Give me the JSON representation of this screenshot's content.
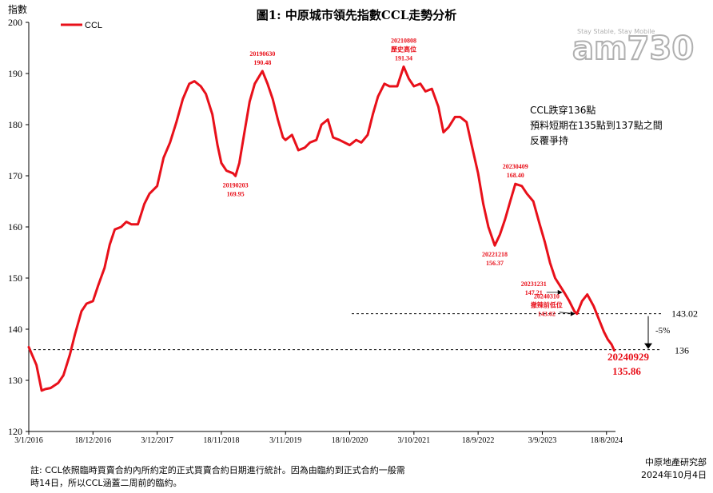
{
  "chart_data": {
    "type": "line",
    "title": "圖1: 中原城市領先指數CCL走勢分析",
    "ylabel": "指數",
    "ylim": [
      120,
      200
    ],
    "yticks": [
      120,
      130,
      140,
      150,
      160,
      170,
      180,
      190,
      200
    ],
    "xticks": [
      "3/1/2016",
      "18/12/2016",
      "3/12/2017",
      "18/11/2018",
      "3/11/2019",
      "18/10/2020",
      "3/10/2021",
      "18/9/2022",
      "3/9/2023",
      "18/8/2024"
    ],
    "xlim": [
      "2016-01-03",
      "2024-10-06"
    ],
    "legend": {
      "position": "top-left",
      "label": "CCL"
    },
    "series": [
      {
        "name": "CCL",
        "color": "#e8101a",
        "points": [
          [
            "2016-01-03",
            136.5
          ],
          [
            "2016-02-14",
            133.0
          ],
          [
            "2016-03-13",
            128.0
          ],
          [
            "2016-04-03",
            128.3
          ],
          [
            "2016-05-01",
            128.5
          ],
          [
            "2016-06-12",
            129.5
          ],
          [
            "2016-07-10",
            131.0
          ],
          [
            "2016-08-14",
            135.0
          ],
          [
            "2016-09-11",
            139.0
          ],
          [
            "2016-10-16",
            143.5
          ],
          [
            "2016-11-13",
            145.0
          ],
          [
            "2016-12-18",
            145.5
          ],
          [
            "2017-01-15",
            148.5
          ],
          [
            "2017-02-19",
            152.0
          ],
          [
            "2017-03-19",
            156.5
          ],
          [
            "2017-04-16",
            159.5
          ],
          [
            "2017-05-21",
            160.0
          ],
          [
            "2017-06-18",
            161.0
          ],
          [
            "2017-07-16",
            160.5
          ],
          [
            "2017-08-20",
            160.5
          ],
          [
            "2017-09-24",
            164.5
          ],
          [
            "2017-10-22",
            166.5
          ],
          [
            "2017-12-03",
            168.0
          ],
          [
            "2018-01-07",
            173.5
          ],
          [
            "2018-02-11",
            176.5
          ],
          [
            "2018-03-18",
            180.5
          ],
          [
            "2018-04-22",
            185.0
          ],
          [
            "2018-05-27",
            188.0
          ],
          [
            "2018-06-24",
            188.5
          ],
          [
            "2018-07-29",
            187.5
          ],
          [
            "2018-08-26",
            186.0
          ],
          [
            "2018-09-30",
            182.0
          ],
          [
            "2018-10-28",
            176.0
          ],
          [
            "2018-11-18",
            172.5
          ],
          [
            "2018-12-16",
            171.0
          ],
          [
            "2019-01-20",
            170.5
          ],
          [
            "2019-02-03",
            169.95
          ],
          [
            "2019-02-24",
            172.5
          ],
          [
            "2019-03-24",
            178.5
          ],
          [
            "2019-04-21",
            184.5
          ],
          [
            "2019-05-19",
            188.0
          ],
          [
            "2019-06-30",
            190.48
          ],
          [
            "2019-07-28",
            188.0
          ],
          [
            "2019-08-25",
            185.0
          ],
          [
            "2019-09-22",
            181.0
          ],
          [
            "2019-10-20",
            177.5
          ],
          [
            "2019-11-03",
            177.0
          ],
          [
            "2019-12-08",
            178.0
          ],
          [
            "2020-01-12",
            175.0
          ],
          [
            "2020-02-16",
            175.5
          ],
          [
            "2020-03-15",
            176.5
          ],
          [
            "2020-04-19",
            177.0
          ],
          [
            "2020-05-17",
            180.0
          ],
          [
            "2020-06-21",
            181.0
          ],
          [
            "2020-07-19",
            177.5
          ],
          [
            "2020-08-23",
            177.0
          ],
          [
            "2020-09-20",
            176.5
          ],
          [
            "2020-10-18",
            176.0
          ],
          [
            "2020-11-22",
            177.0
          ],
          [
            "2020-12-20",
            176.5
          ],
          [
            "2021-01-24",
            178.0
          ],
          [
            "2021-02-21",
            182.0
          ],
          [
            "2021-03-21",
            185.5
          ],
          [
            "2021-04-25",
            188.0
          ],
          [
            "2021-05-23",
            187.5
          ],
          [
            "2021-07-04",
            187.5
          ],
          [
            "2021-08-08",
            191.34
          ],
          [
            "2021-09-05",
            189.0
          ],
          [
            "2021-10-03",
            187.5
          ],
          [
            "2021-11-07",
            188.0
          ],
          [
            "2021-12-05",
            186.5
          ],
          [
            "2022-01-09",
            187.0
          ],
          [
            "2022-02-13",
            183.5
          ],
          [
            "2022-03-13",
            178.5
          ],
          [
            "2022-04-10",
            179.5
          ],
          [
            "2022-05-15",
            181.5
          ],
          [
            "2022-06-12",
            181.5
          ],
          [
            "2022-07-17",
            180.5
          ],
          [
            "2022-08-14",
            176.0
          ],
          [
            "2022-09-18",
            170.5
          ],
          [
            "2022-10-16",
            164.5
          ],
          [
            "2022-11-13",
            160.0
          ],
          [
            "2022-12-18",
            156.37
          ],
          [
            "2023-01-15",
            158.5
          ],
          [
            "2023-02-12",
            161.5
          ],
          [
            "2023-03-12",
            165.0
          ],
          [
            "2023-04-09",
            168.4
          ],
          [
            "2023-05-14",
            168.0
          ],
          [
            "2023-06-11",
            166.5
          ],
          [
            "2023-07-16",
            165.0
          ],
          [
            "2023-08-20",
            160.5
          ],
          [
            "2023-09-17",
            157.0
          ],
          [
            "2023-10-15",
            153.0
          ],
          [
            "2023-11-12",
            150.0
          ],
          [
            "2023-12-31",
            147.21
          ],
          [
            "2024-01-28",
            145.5
          ],
          [
            "2024-02-25",
            143.5
          ],
          [
            "2024-03-10",
            143.02
          ],
          [
            "2024-04-07",
            145.5
          ],
          [
            "2024-05-05",
            146.8
          ],
          [
            "2024-06-09",
            144.5
          ],
          [
            "2024-07-07",
            142.0
          ],
          [
            "2024-08-04",
            139.5
          ],
          [
            "2024-08-25",
            138.0
          ],
          [
            "2024-09-15",
            137.0
          ],
          [
            "2024-09-29",
            135.86
          ]
        ]
      }
    ],
    "annotations": [
      {
        "date": "2019-02-03",
        "value": 169.95,
        "label": [
          "20190203",
          "169.95"
        ],
        "side": "below"
      },
      {
        "date": "2019-06-30",
        "value": 190.48,
        "label": [
          "20190630",
          "190.48"
        ],
        "side": "above"
      },
      {
        "date": "2021-08-08",
        "value": 191.34,
        "label": [
          "20210808",
          "歷史高位",
          "191.34"
        ],
        "side": "above"
      },
      {
        "date": "2022-12-18",
        "value": 156.37,
        "label": [
          "20221218",
          "156.37"
        ],
        "side": "below"
      },
      {
        "date": "2023-04-09",
        "value": 168.4,
        "label": [
          "20230409",
          "168.40"
        ],
        "side": "above"
      },
      {
        "date": "2023-12-31",
        "value": 147.21,
        "label": [
          "20231231",
          "147.21"
        ],
        "side": "left-arrow"
      },
      {
        "date": "2024-03-10",
        "value": 143.02,
        "label": [
          "20240310",
          "撤辣前低位",
          "143.02"
        ],
        "side": "left-arrow"
      }
    ],
    "reference_lines": [
      {
        "value": 143.02,
        "label": "143.02",
        "style": "dashed"
      },
      {
        "value": 136,
        "label": "136",
        "style": "dashed"
      }
    ],
    "change_label": "-5%",
    "latest_label": {
      "date": "20240929",
      "value": "135.86"
    },
    "commentary": [
      "CCL跌穿136點",
      "預料短期在135點到137點之間",
      "反覆爭持"
    ]
  },
  "footnote": [
    "註: CCL依照臨時買賣合約內所約定的正式買賣合約日期進行統計。因為由臨約到正式合約一般需",
    "時14日，所以CCL涵蓋二周前的臨約。"
  ],
  "source": {
    "org": "中原地產研究部",
    "date": "2024年10月4日"
  },
  "watermark": {
    "text": "am730",
    "small": "Stay Stable, Stay Mobile"
  }
}
